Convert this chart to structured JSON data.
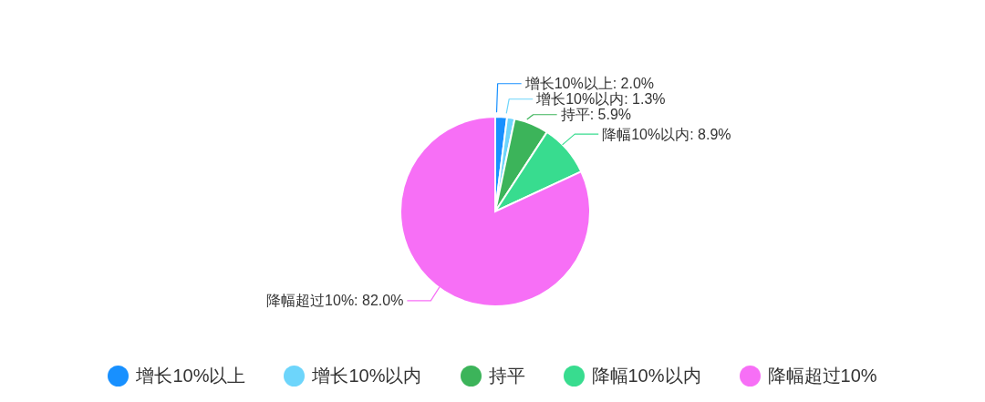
{
  "chart_data": {
    "type": "pie",
    "categories": [
      "增长10%以上",
      "增长10%以内",
      "持平",
      "降幅10%以内",
      "降幅超过10%"
    ],
    "values": [
      2.0,
      1.3,
      5.9,
      8.9,
      82.0
    ],
    "colors": [
      "#1890ff",
      "#6dd5fb",
      "#3cb45a",
      "#38dc8f",
      "#f76ff6"
    ],
    "value_labels": [
      "增长10%以上: 2.0%",
      "增长10%以内: 1.3%",
      "持平: 5.9%",
      "降幅10%以内: 8.9%",
      "降幅超过10%: 82.0%"
    ],
    "legend": "bottom"
  }
}
